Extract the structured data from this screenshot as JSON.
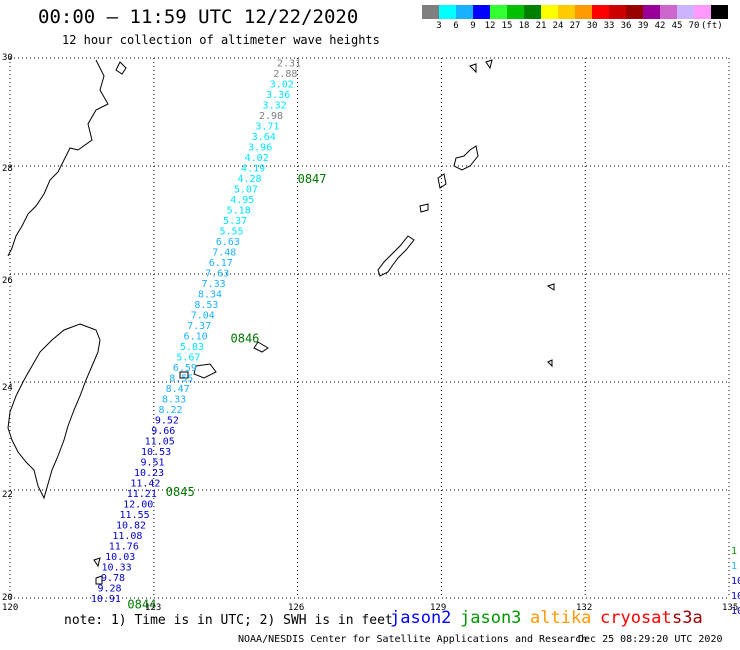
{
  "title": "00:00 – 11:59 UTC 12/22/2020",
  "subtitle": "12 hour collection of altimeter wave heights",
  "colorbar": {
    "colors": [
      "#7f7f7f",
      "#00ffff",
      "#1ab2ff",
      "#0000ff",
      "#33ff33",
      "#00c000",
      "#008000",
      "#ffff00",
      "#ffcc00",
      "#ff9900",
      "#ff0000",
      "#cc0000",
      "#990000",
      "#990099",
      "#cc66cc",
      "#ccb3ff",
      "#ff99ff",
      "#000000"
    ],
    "labels": [
      "3",
      "6",
      "9",
      "12",
      "15",
      "18",
      "21",
      "24",
      "27",
      "30",
      "33",
      "36",
      "39",
      "42",
      "45",
      "70",
      "(ft)"
    ]
  },
  "axes": {
    "lat_labels": [
      "30",
      "28",
      "26",
      "24",
      "22",
      "20"
    ],
    "lon_labels": [
      "120",
      "123",
      "126",
      "129",
      "132",
      "135"
    ],
    "lat_range": [
      20,
      30
    ],
    "lon_range": [
      120,
      135
    ]
  },
  "track": {
    "values": [
      "2.31",
      "2.88",
      "3.02",
      "3.36",
      "3.32",
      "2.98",
      "3.71",
      "3.64",
      "3.96",
      "4.02",
      "4.19",
      "4.28",
      "5.07",
      "4.95",
      "5.18",
      "5.37",
      "5.55",
      "6.63",
      "7.48",
      "6.17",
      "7.63",
      "7.33",
      "8.34",
      "8.53",
      "7.04",
      "7.37",
      "6.10",
      "5.83",
      "5.67",
      "6.59",
      "8.55",
      "8.47",
      "8.33",
      "8.22",
      "9.52",
      "9.66",
      "11.05",
      "10.53",
      "9.51",
      "10.23",
      "11.42",
      "11.21",
      "12.00",
      "11.55",
      "10.82",
      "11.08",
      "11.76",
      "10.03",
      "10.33",
      "9.78",
      "9.28",
      "10.91"
    ],
    "lat_start": 29.92,
    "lat_end": 20.0,
    "lon_start": 125.82,
    "lon_end": 122.0
  },
  "time_labels": [
    {
      "text": "0847",
      "lat": 27.78,
      "lon": 126.0
    },
    {
      "text": "0846",
      "lat": 24.82,
      "lon": 124.6
    },
    {
      "text": "0845",
      "lat": 21.98,
      "lon": 123.25
    },
    {
      "text": "0844",
      "lat": 19.9,
      "lon": 122.45
    }
  ],
  "edge_values": [
    "1",
    "1",
    "10",
    "10",
    "10"
  ],
  "note": "note: 1) Time is in UTC; 2) SWH is in feet",
  "satellites": [
    {
      "name": "jason2",
      "color": "#0000ff"
    },
    {
      "name": "jason3",
      "color": "#009900"
    },
    {
      "name": "altika",
      "color": "#ff9900"
    },
    {
      "name": "cryosat",
      "color": "#ff0000"
    },
    {
      "name": "s3a",
      "color": "#990000"
    }
  ],
  "credit": "NOAA/NESDIS Center for Satellite Applications and Research",
  "timestamp": "Dec 25 08:29:20 UTC 2020"
}
